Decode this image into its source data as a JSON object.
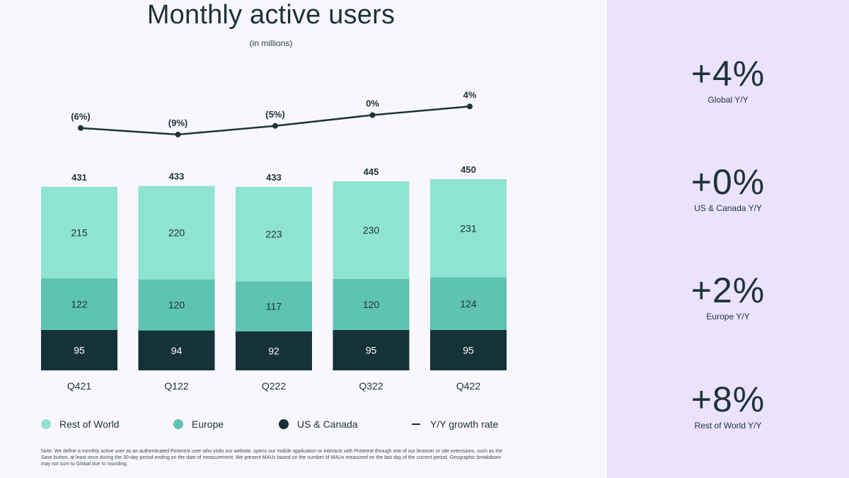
{
  "title": "Monthly active users",
  "subtitle": "(in millions)",
  "chart_data": {
    "type": "bar",
    "stacked": true,
    "categories": [
      "Q421",
      "Q122",
      "Q222",
      "Q322",
      "Q422"
    ],
    "series": [
      {
        "name": "US & Canada",
        "values": [
          95,
          94,
          92,
          95,
          95
        ],
        "color": "#143238"
      },
      {
        "name": "Europe",
        "values": [
          122,
          120,
          117,
          120,
          124
        ],
        "color": "#5ec3b1"
      },
      {
        "name": "Rest of World",
        "values": [
          215,
          220,
          223,
          230,
          231
        ],
        "color": "#8fe3d3"
      }
    ],
    "totals": [
      431,
      433,
      433,
      445,
      450
    ],
    "growth": {
      "name": "Y/Y growth rate",
      "values": [
        -6,
        -9,
        -5,
        0,
        4
      ],
      "labels": [
        "(6%)",
        "(9%)",
        "(5%)",
        "0%",
        "4%"
      ],
      "color": "#1e3339"
    },
    "grid": false
  },
  "legend": [
    {
      "label": "Rest of World",
      "color": "#8fe3d3",
      "shape": "circle"
    },
    {
      "label": "Europe",
      "color": "#5ec3b1",
      "shape": "circle"
    },
    {
      "label": "US & Canada",
      "color": "#143238",
      "shape": "circle"
    },
    {
      "label": "Y/Y growth rate",
      "color": "#1e3339",
      "shape": "line"
    }
  ],
  "note": "Note: We define a monthly active user as an authenticated Pinterest user who visits our website, opens our mobile application or interacts with Pinterest through one of our browser or site extensions, such as the Save button, at least once during the 30-day period ending on the date of measurement. We present MAUs based on the number of MAUs measured on the last day of the current period. Geographic breakdown may not sum to Global due to rounding.",
  "kpis": [
    {
      "value": "+4%",
      "label": "Global Y/Y"
    },
    {
      "value": "+0%",
      "label": "US & Canada Y/Y"
    },
    {
      "value": "+2%",
      "label": "Europe Y/Y"
    },
    {
      "value": "+8%",
      "label": "Rest of World Y/Y"
    }
  ]
}
